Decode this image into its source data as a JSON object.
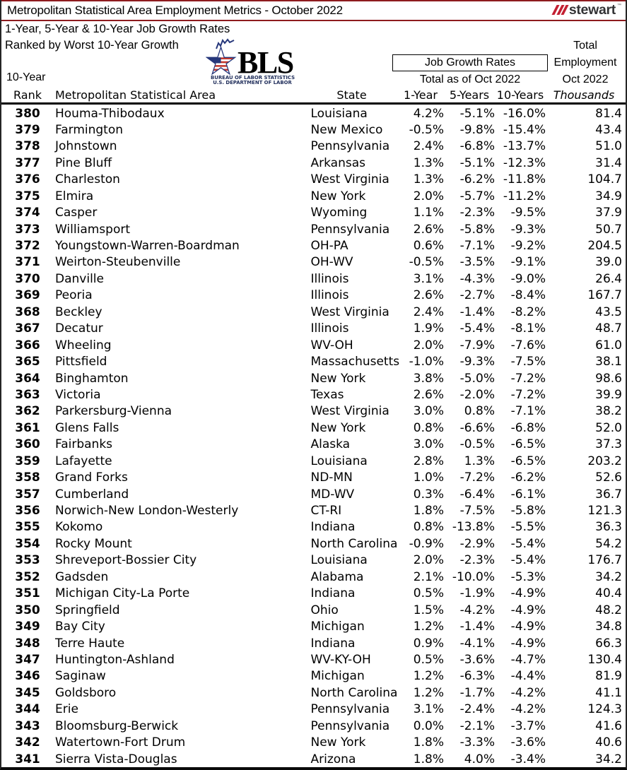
{
  "title": "Metropolitan Statistical Area Employment Metrics - October 2022",
  "brand": {
    "word": "stewart",
    "tm": "™",
    "slash_color": "#c32032"
  },
  "subtitle1": "1-Year, 5-Year & 10-Year Job Growth Rates",
  "subtitle2": "Ranked by Worst 10-Year Growth",
  "bls": {
    "acronym": "BLS",
    "caption1": "BUREAU OF LABOR STATISTICS",
    "caption2": "U.S. DEPARTMENT OF LABOR"
  },
  "header": {
    "total": "Total",
    "job_growth_rates": "Job Growth Rates",
    "employment": "Employment",
    "total_as_of": "Total as of Oct 2022",
    "oct_2022": "Oct 2022",
    "rank_line1": "10-Year",
    "rank_line2": "Rank",
    "msa": "Metropolitan Statistical Area",
    "state": "State",
    "y1": "1-Year",
    "y5": "5-Years",
    "y10": "10-Years",
    "thousands": "Thousands"
  },
  "rows": [
    {
      "rank": "380",
      "msa": "Houma-Thibodaux",
      "state": "Louisiana",
      "y1": "4.2%",
      "y5": "-5.1%",
      "y10": "-16.0%",
      "emp": "81.4"
    },
    {
      "rank": "379",
      "msa": "Farmington",
      "state": "New Mexico",
      "y1": "-0.5%",
      "y5": "-9.8%",
      "y10": "-15.4%",
      "emp": "43.4"
    },
    {
      "rank": "378",
      "msa": "Johnstown",
      "state": "Pennsylvania",
      "y1": "2.4%",
      "y5": "-6.8%",
      "y10": "-13.7%",
      "emp": "51.0"
    },
    {
      "rank": "377",
      "msa": "Pine Bluff",
      "state": "Arkansas",
      "y1": "1.3%",
      "y5": "-5.1%",
      "y10": "-12.3%",
      "emp": "31.4"
    },
    {
      "rank": "376",
      "msa": "Charleston",
      "state": "West Virginia",
      "y1": "1.3%",
      "y5": "-6.2%",
      "y10": "-11.8%",
      "emp": "104.7"
    },
    {
      "rank": "375",
      "msa": "Elmira",
      "state": "New York",
      "y1": "2.0%",
      "y5": "-5.7%",
      "y10": "-11.2%",
      "emp": "34.9"
    },
    {
      "rank": "374",
      "msa": "Casper",
      "state": "Wyoming",
      "y1": "1.1%",
      "y5": "-2.3%",
      "y10": "-9.5%",
      "emp": "37.9"
    },
    {
      "rank": "373",
      "msa": "Williamsport",
      "state": "Pennsylvania",
      "y1": "2.6%",
      "y5": "-5.8%",
      "y10": "-9.3%",
      "emp": "50.7"
    },
    {
      "rank": "372",
      "msa": "Youngstown-Warren-Boardman",
      "state": "OH-PA",
      "y1": "0.6%",
      "y5": "-7.1%",
      "y10": "-9.2%",
      "emp": "204.5"
    },
    {
      "rank": "371",
      "msa": "Weirton-Steubenville",
      "state": "OH-WV",
      "y1": "-0.5%",
      "y5": "-3.5%",
      "y10": "-9.1%",
      "emp": "39.0"
    },
    {
      "rank": "370",
      "msa": "Danville",
      "state": "Illinois",
      "y1": "3.1%",
      "y5": "-4.3%",
      "y10": "-9.0%",
      "emp": "26.4"
    },
    {
      "rank": "369",
      "msa": "Peoria",
      "state": "Illinois",
      "y1": "2.6%",
      "y5": "-2.7%",
      "y10": "-8.4%",
      "emp": "167.7"
    },
    {
      "rank": "368",
      "msa": "Beckley",
      "state": "West Virginia",
      "y1": "2.4%",
      "y5": "-1.4%",
      "y10": "-8.2%",
      "emp": "43.5"
    },
    {
      "rank": "367",
      "msa": "Decatur",
      "state": "Illinois",
      "y1": "1.9%",
      "y5": "-5.4%",
      "y10": "-8.1%",
      "emp": "48.7"
    },
    {
      "rank": "366",
      "msa": "Wheeling",
      "state": "WV-OH",
      "y1": "2.0%",
      "y5": "-7.9%",
      "y10": "-7.6%",
      "emp": "61.0"
    },
    {
      "rank": "365",
      "msa": "Pittsfield",
      "state": "Massachusetts",
      "y1": "-1.0%",
      "y5": "-9.3%",
      "y10": "-7.5%",
      "emp": "38.1"
    },
    {
      "rank": "364",
      "msa": "Binghamton",
      "state": "New York",
      "y1": "3.8%",
      "y5": "-5.0%",
      "y10": "-7.2%",
      "emp": "98.6"
    },
    {
      "rank": "363",
      "msa": "Victoria",
      "state": "Texas",
      "y1": "2.6%",
      "y5": "-2.0%",
      "y10": "-7.2%",
      "emp": "39.9"
    },
    {
      "rank": "362",
      "msa": "Parkersburg-Vienna",
      "state": "West Virginia",
      "y1": "3.0%",
      "y5": "0.8%",
      "y10": "-7.1%",
      "emp": "38.2"
    },
    {
      "rank": "361",
      "msa": "Glens Falls",
      "state": "New York",
      "y1": "0.8%",
      "y5": "-6.6%",
      "y10": "-6.8%",
      "emp": "52.0"
    },
    {
      "rank": "360",
      "msa": "Fairbanks",
      "state": "Alaska",
      "y1": "3.0%",
      "y5": "-0.5%",
      "y10": "-6.5%",
      "emp": "37.3"
    },
    {
      "rank": "359",
      "msa": "Lafayette",
      "state": "Louisiana",
      "y1": "2.8%",
      "y5": "1.3%",
      "y10": "-6.5%",
      "emp": "203.2"
    },
    {
      "rank": "358",
      "msa": "Grand Forks",
      "state": "ND-MN",
      "y1": "1.0%",
      "y5": "-7.2%",
      "y10": "-6.2%",
      "emp": "52.6"
    },
    {
      "rank": "357",
      "msa": "Cumberland",
      "state": "MD-WV",
      "y1": "0.3%",
      "y5": "-6.4%",
      "y10": "-6.1%",
      "emp": "36.7"
    },
    {
      "rank": "356",
      "msa": "Norwich-New London-Westerly",
      "state": "CT-RI",
      "y1": "1.8%",
      "y5": "-7.5%",
      "y10": "-5.8%",
      "emp": "121.3"
    },
    {
      "rank": "355",
      "msa": "Kokomo",
      "state": "Indiana",
      "y1": "0.8%",
      "y5": "-13.8%",
      "y10": "-5.5%",
      "emp": "36.3"
    },
    {
      "rank": "354",
      "msa": "Rocky Mount",
      "state": "North Carolina",
      "y1": "-0.9%",
      "y5": "-2.9%",
      "y10": "-5.4%",
      "emp": "54.2"
    },
    {
      "rank": "353",
      "msa": "Shreveport-Bossier City",
      "state": "Louisiana",
      "y1": "2.0%",
      "y5": "-2.3%",
      "y10": "-5.4%",
      "emp": "176.7"
    },
    {
      "rank": "352",
      "msa": "Gadsden",
      "state": "Alabama",
      "y1": "2.1%",
      "y5": "-10.0%",
      "y10": "-5.3%",
      "emp": "34.2"
    },
    {
      "rank": "351",
      "msa": "Michigan City-La Porte",
      "state": "Indiana",
      "y1": "0.5%",
      "y5": "-1.9%",
      "y10": "-4.9%",
      "emp": "40.4"
    },
    {
      "rank": "350",
      "msa": "Springfield",
      "state": "Ohio",
      "y1": "1.5%",
      "y5": "-4.2%",
      "y10": "-4.9%",
      "emp": "48.2"
    },
    {
      "rank": "349",
      "msa": "Bay City",
      "state": "Michigan",
      "y1": "1.2%",
      "y5": "-1.4%",
      "y10": "-4.9%",
      "emp": "34.8"
    },
    {
      "rank": "348",
      "msa": "Terre Haute",
      "state": "Indiana",
      "y1": "0.9%",
      "y5": "-4.1%",
      "y10": "-4.9%",
      "emp": "66.3"
    },
    {
      "rank": "347",
      "msa": "Huntington-Ashland",
      "state": "WV-KY-OH",
      "y1": "0.5%",
      "y5": "-3.6%",
      "y10": "-4.7%",
      "emp": "130.4"
    },
    {
      "rank": "346",
      "msa": "Saginaw",
      "state": "Michigan",
      "y1": "1.2%",
      "y5": "-6.3%",
      "y10": "-4.4%",
      "emp": "81.9"
    },
    {
      "rank": "345",
      "msa": "Goldsboro",
      "state": "North Carolina",
      "y1": "1.2%",
      "y5": "-1.7%",
      "y10": "-4.2%",
      "emp": "41.1"
    },
    {
      "rank": "344",
      "msa": "Erie",
      "state": "Pennsylvania",
      "y1": "3.1%",
      "y5": "-2.4%",
      "y10": "-4.2%",
      "emp": "124.3"
    },
    {
      "rank": "343",
      "msa": "Bloomsburg-Berwick",
      "state": "Pennsylvania",
      "y1": "0.0%",
      "y5": "-2.1%",
      "y10": "-3.7%",
      "emp": "41.6"
    },
    {
      "rank": "342",
      "msa": "Watertown-Fort Drum",
      "state": "New York",
      "y1": "1.8%",
      "y5": "-3.3%",
      "y10": "-3.6%",
      "emp": "40.6"
    },
    {
      "rank": "341",
      "msa": "Sierra Vista-Douglas",
      "state": "Arizona",
      "y1": "1.8%",
      "y5": "4.0%",
      "y10": "-3.4%",
      "emp": "34.2"
    }
  ]
}
